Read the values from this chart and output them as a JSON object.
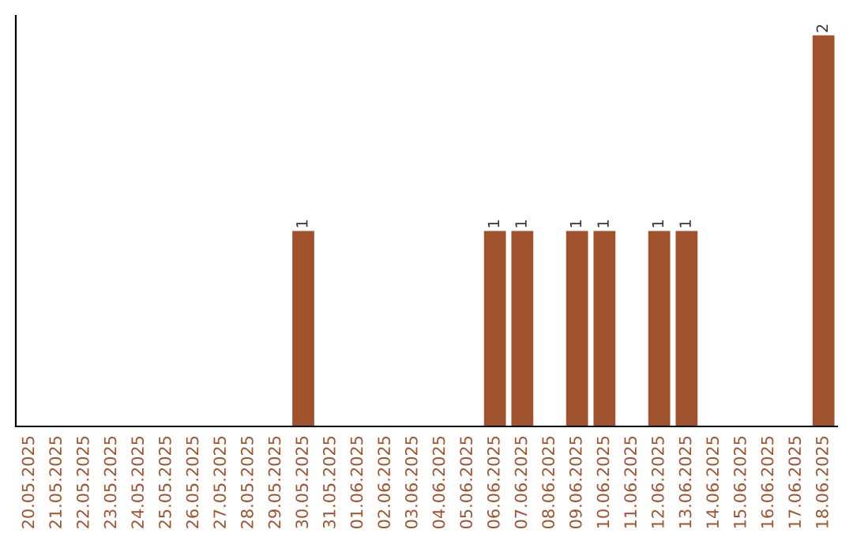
{
  "chart_data": {
    "type": "bar",
    "categories": [
      "20.05.2025",
      "21.05.2025",
      "22.05.2025",
      "23.05.2025",
      "24.05.2025",
      "25.05.2025",
      "26.05.2025",
      "27.05.2025",
      "28.05.2025",
      "29.05.2025",
      "30.05.2025",
      "31.05.2025",
      "01.06.2025",
      "02.06.2025",
      "03.06.2025",
      "04.06.2025",
      "05.06.2025",
      "06.06.2025",
      "07.06.2025",
      "08.06.2025",
      "09.06.2025",
      "10.06.2025",
      "11.06.2025",
      "12.06.2025",
      "13.06.2025",
      "14.06.2025",
      "15.06.2025",
      "16.06.2025",
      "17.06.2025",
      "18.06.2025"
    ],
    "values": [
      0,
      0,
      0,
      0,
      0,
      0,
      0,
      0,
      0,
      0,
      1,
      0,
      0,
      0,
      0,
      0,
      0,
      1,
      1,
      0,
      1,
      1,
      0,
      1,
      1,
      0,
      0,
      0,
      0,
      2
    ],
    "value_labels": [
      null,
      null,
      null,
      null,
      null,
      null,
      null,
      null,
      null,
      null,
      "1",
      null,
      null,
      null,
      null,
      null,
      null,
      "1",
      "1",
      null,
      "1",
      "1",
      null,
      "1",
      "1",
      null,
      null,
      null,
      null,
      "2"
    ],
    "color": "#a0522d",
    "tick_labels": "x",
    "grid": false,
    "legend": false
  }
}
